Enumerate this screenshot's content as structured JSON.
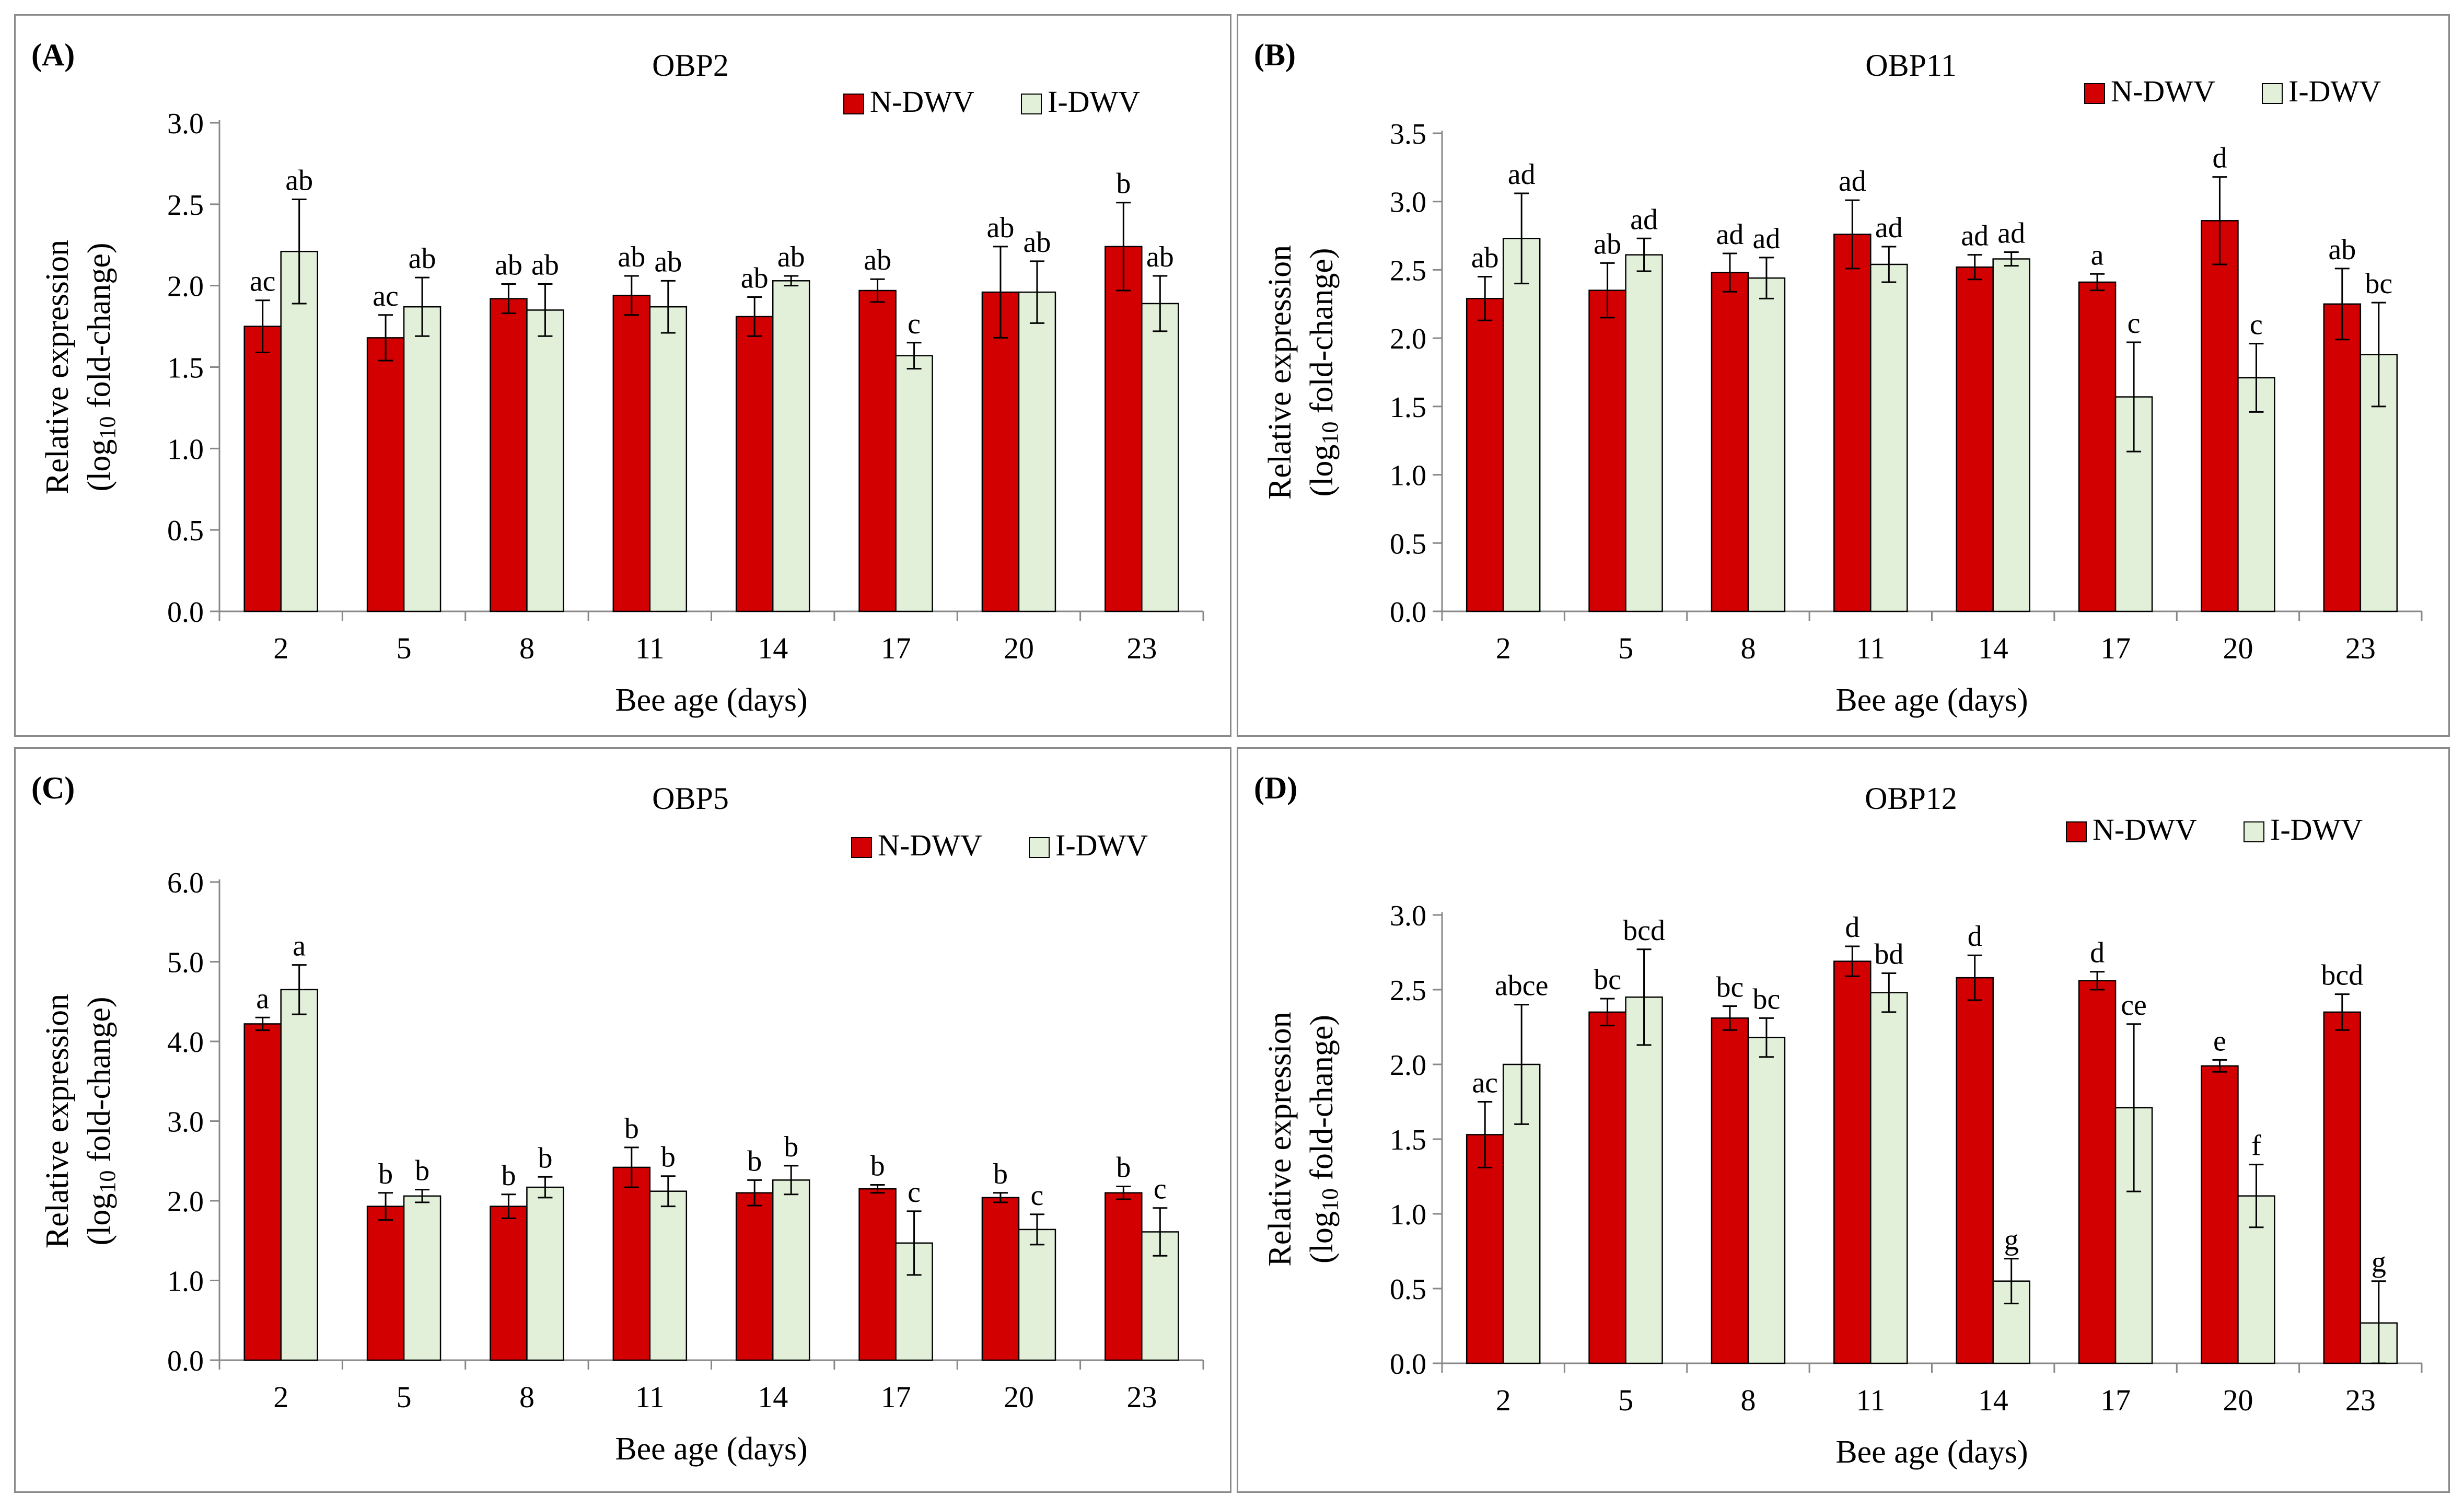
{
  "colors": {
    "n_dwv": "#d20000",
    "i_dwv": "#e2efd9",
    "outline": "#000000",
    "frame": "#8a8a8a"
  },
  "chart_data": [
    {
      "panel_label": "(A)",
      "type": "bar",
      "title": "OBP2",
      "xlabel": "Bee age (days)",
      "ylabel_line1": "Relative expression",
      "ylabel_line2_pre": "(log",
      "ylabel_line2_sub": "10",
      "ylabel_line2_post": " fold-change)",
      "ylim": [
        0,
        3.0
      ],
      "ytick_step": 0.5,
      "ytick_labels": [
        "0.0",
        "0.5",
        "1.0",
        "1.5",
        "2.0",
        "2.5",
        "3.0"
      ],
      "categories": [
        "2",
        "5",
        "8",
        "11",
        "14",
        "17",
        "20",
        "23"
      ],
      "legend_position": "top-right",
      "grid": false,
      "series": [
        {
          "name": "N-DWV",
          "color": "#d20000",
          "values": [
            1.75,
            1.68,
            1.92,
            1.94,
            1.81,
            1.97,
            1.96,
            2.24
          ],
          "errors": [
            0.16,
            0.14,
            0.09,
            0.12,
            0.12,
            0.07,
            0.28,
            0.27
          ],
          "labels": [
            "ac",
            "ac",
            "ab",
            "ab",
            "ab",
            "ab",
            "ab",
            "b"
          ]
        },
        {
          "name": "I-DWV",
          "color": "#e2efd9",
          "values": [
            2.21,
            1.87,
            1.85,
            1.87,
            2.03,
            1.57,
            1.96,
            1.89
          ],
          "errors": [
            0.32,
            0.18,
            0.16,
            0.16,
            0.03,
            0.08,
            0.19,
            0.17
          ],
          "labels": [
            "ab",
            "ab",
            "ab",
            "ab",
            "ab",
            "c",
            "ab",
            "ab"
          ]
        }
      ]
    },
    {
      "panel_label": "(B)",
      "type": "bar",
      "title": "OBP11",
      "xlabel": "Bee age (days)",
      "ylabel_line1": "Relative expression",
      "ylabel_line2_pre": "(log",
      "ylabel_line2_sub": "10",
      "ylabel_line2_post": " fold-change)",
      "ylim": [
        0,
        3.5
      ],
      "ytick_step": 0.5,
      "ytick_labels": [
        "0.0",
        "0.5",
        "1.0",
        "1.5",
        "2.0",
        "2.5",
        "3.0",
        "3.5"
      ],
      "categories": [
        "2",
        "5",
        "8",
        "11",
        "14",
        "17",
        "20",
        "23"
      ],
      "legend_position": "top-right",
      "grid": false,
      "series": [
        {
          "name": "N-DWV",
          "color": "#d20000",
          "values": [
            2.29,
            2.35,
            2.48,
            2.76,
            2.52,
            2.41,
            2.86,
            2.25
          ],
          "errors": [
            0.16,
            0.2,
            0.14,
            0.25,
            0.09,
            0.06,
            0.32,
            0.26
          ],
          "labels": [
            "ab",
            "ab",
            "ad",
            "ad",
            "ad",
            "a",
            "d",
            "ab"
          ]
        },
        {
          "name": "I-DWV",
          "color": "#e2efd9",
          "values": [
            2.73,
            2.61,
            2.44,
            2.54,
            2.58,
            1.57,
            1.71,
            1.88
          ],
          "errors": [
            0.33,
            0.12,
            0.15,
            0.13,
            0.05,
            0.4,
            0.25,
            0.38
          ],
          "labels": [
            "ad",
            "ad",
            "ad",
            "ad",
            "ad",
            "c",
            "c",
            "bc"
          ]
        }
      ]
    },
    {
      "panel_label": "(C)",
      "type": "bar",
      "title": "OBP5",
      "xlabel": "Bee age (days)",
      "ylabel_line1": "Relative expression",
      "ylabel_line2_pre": "(log",
      "ylabel_line2_sub": "10",
      "ylabel_line2_post": " fold-change)",
      "ylim": [
        0,
        6.0
      ],
      "ytick_step": 1.0,
      "ytick_labels": [
        "0.0",
        "1.0",
        "2.0",
        "3.0",
        "4.0",
        "5.0",
        "6.0"
      ],
      "categories": [
        "2",
        "5",
        "8",
        "11",
        "14",
        "17",
        "20",
        "23"
      ],
      "legend_position": "top-right",
      "grid": false,
      "series": [
        {
          "name": "N-DWV",
          "color": "#d20000",
          "values": [
            4.22,
            1.93,
            1.93,
            2.42,
            2.1,
            2.15,
            2.04,
            2.1
          ],
          "errors": [
            0.08,
            0.17,
            0.15,
            0.25,
            0.16,
            0.05,
            0.06,
            0.08
          ],
          "labels": [
            "a",
            "b",
            "b",
            "b",
            "b",
            "b",
            "b",
            "b"
          ]
        },
        {
          "name": "I-DWV",
          "color": "#e2efd9",
          "values": [
            4.65,
            2.06,
            2.17,
            2.12,
            2.26,
            1.47,
            1.64,
            1.61
          ],
          "errors": [
            0.31,
            0.08,
            0.13,
            0.19,
            0.18,
            0.4,
            0.19,
            0.3
          ],
          "labels": [
            "a",
            "b",
            "b",
            "b",
            "b",
            "c",
            "c",
            "c"
          ]
        }
      ]
    },
    {
      "panel_label": "(D)",
      "type": "bar",
      "title": "OBP12",
      "xlabel": "Bee age (days)",
      "ylabel_line1": "Relative expression",
      "ylabel_line2_pre": "(log",
      "ylabel_line2_sub": "10",
      "ylabel_line2_post": " fold-change)",
      "ylim": [
        0,
        3.0
      ],
      "ytick_step": 0.5,
      "ytick_labels": [
        "0.0",
        "0.5",
        "1.0",
        "1.5",
        "2.0",
        "2.5",
        "3.0"
      ],
      "categories": [
        "2",
        "5",
        "8",
        "11",
        "14",
        "17",
        "20",
        "23"
      ],
      "legend_position": "top-right",
      "grid": false,
      "series": [
        {
          "name": "N-DWV",
          "color": "#d20000",
          "values": [
            1.53,
            2.35,
            2.31,
            2.69,
            2.58,
            2.56,
            1.99,
            2.35
          ],
          "errors": [
            0.22,
            0.09,
            0.08,
            0.1,
            0.15,
            0.06,
            0.04,
            0.12
          ],
          "labels": [
            "ac",
            "bc",
            "bc",
            "d",
            "d",
            "d",
            "e",
            "bcd"
          ]
        },
        {
          "name": "I-DWV",
          "color": "#e2efd9",
          "values": [
            2.0,
            2.45,
            2.18,
            2.48,
            0.55,
            1.71,
            1.12,
            0.27
          ],
          "errors": [
            0.4,
            0.32,
            0.13,
            0.13,
            0.15,
            0.56,
            0.21,
            0.28
          ],
          "labels": [
            "abce",
            "bcd",
            "bc",
            "bd",
            "g",
            "ce",
            "f",
            "g"
          ]
        }
      ]
    }
  ]
}
